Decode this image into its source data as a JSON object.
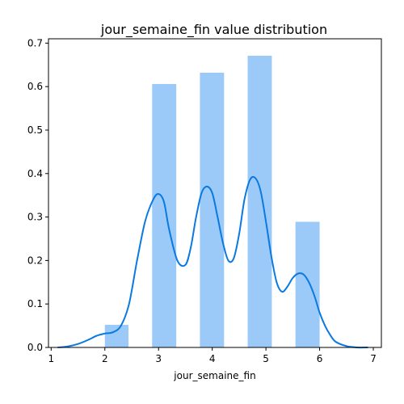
{
  "chart_data": {
    "type": "bar",
    "title": "jour_semaine_fin value distribution",
    "xlabel": "jour_semaine_fin",
    "ylabel": "",
    "xlim": [
      0.95,
      7.15
    ],
    "ylim": [
      0,
      0.71
    ],
    "x_ticks": [
      "1",
      "2",
      "3",
      "4",
      "5",
      "6",
      "7"
    ],
    "y_ticks": [
      "0.0",
      "0.1",
      "0.2",
      "0.3",
      "0.4",
      "0.5",
      "0.6",
      "0.7"
    ],
    "grid": false,
    "histogram": {
      "bars": [
        {
          "x0": 2.0,
          "x1": 2.44,
          "value": 0.052
        },
        {
          "x0": 2.88,
          "x1": 3.33,
          "value": 0.606
        },
        {
          "x0": 3.77,
          "x1": 4.22,
          "value": 0.632
        },
        {
          "x0": 4.66,
          "x1": 5.11,
          "value": 0.671
        },
        {
          "x0": 5.55,
          "x1": 6.0,
          "value": 0.289
        }
      ],
      "color": "#9bcaf8"
    },
    "kde": {
      "color": "#0a79e0",
      "x": [
        1.12,
        1.3,
        1.5,
        1.7,
        1.85,
        2.0,
        2.15,
        2.3,
        2.45,
        2.6,
        2.75,
        2.9,
        3.0,
        3.1,
        3.2,
        3.35,
        3.5,
        3.6,
        3.7,
        3.8,
        3.9,
        4.0,
        4.1,
        4.2,
        4.3,
        4.4,
        4.5,
        4.6,
        4.7,
        4.8,
        4.9,
        5.0,
        5.1,
        5.2,
        5.3,
        5.4,
        5.5,
        5.6,
        5.7,
        5.8,
        5.9,
        6.0,
        6.1,
        6.2,
        6.3,
        6.5,
        6.7,
        6.9
      ],
      "y": [
        0.0,
        0.002,
        0.008,
        0.018,
        0.027,
        0.032,
        0.035,
        0.05,
        0.1,
        0.2,
        0.29,
        0.34,
        0.353,
        0.335,
        0.27,
        0.2,
        0.19,
        0.23,
        0.3,
        0.355,
        0.37,
        0.355,
        0.3,
        0.24,
        0.2,
        0.205,
        0.26,
        0.34,
        0.385,
        0.39,
        0.36,
        0.29,
        0.21,
        0.15,
        0.128,
        0.14,
        0.16,
        0.17,
        0.168,
        0.15,
        0.12,
        0.08,
        0.05,
        0.028,
        0.013,
        0.003,
        0.0,
        0.0
      ]
    }
  }
}
